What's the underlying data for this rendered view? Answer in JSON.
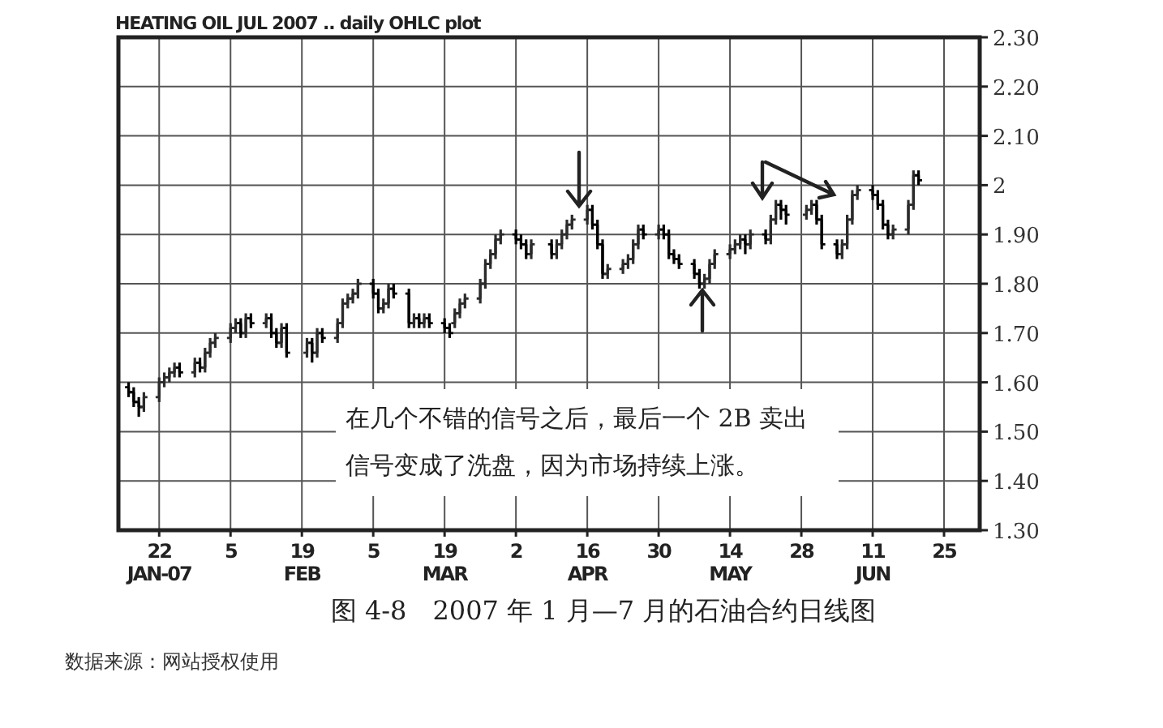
{
  "chart_data": {
    "type": "candlestick",
    "title": "HEATING OIL JUL 2007 .. daily OHLC plot",
    "annotations": [
      "在几个不错的信号之后，最后一个 2B 卖出信号变成了洗盘，因为市场持续上涨。",
      "图 4-8　2007 年 1 月—7 月的石油合约日线图",
      "数据来源：网站授权使用"
    ],
    "x": [
      "2007-01-16",
      "2007-01-17",
      "2007-01-18",
      "2007-01-19",
      "2007-01-22",
      "2007-01-23",
      "2007-01-24",
      "2007-01-25",
      "2007-01-26",
      "2007-01-29",
      "2007-01-30",
      "2007-01-31",
      "2007-02-01",
      "2007-02-02",
      "2007-02-05",
      "2007-02-06",
      "2007-02-07",
      "2007-02-08",
      "2007-02-09",
      "2007-02-12",
      "2007-02-13",
      "2007-02-14",
      "2007-02-15",
      "2007-02-16",
      "2007-02-20",
      "2007-02-21",
      "2007-02-22",
      "2007-02-23",
      "2007-02-26",
      "2007-02-27",
      "2007-02-28",
      "2007-03-01",
      "2007-03-02",
      "2007-03-05",
      "2007-03-06",
      "2007-03-07",
      "2007-03-08",
      "2007-03-09",
      "2007-03-12",
      "2007-03-13",
      "2007-03-14",
      "2007-03-15",
      "2007-03-16",
      "2007-03-19",
      "2007-03-20",
      "2007-03-21",
      "2007-03-22",
      "2007-03-23",
      "2007-03-26",
      "2007-03-27",
      "2007-03-28",
      "2007-03-29",
      "2007-03-30",
      "2007-04-02",
      "2007-04-03",
      "2007-04-04",
      "2007-04-05",
      "2007-04-09",
      "2007-04-10",
      "2007-04-11",
      "2007-04-12",
      "2007-04-13",
      "2007-04-16",
      "2007-04-17",
      "2007-04-18",
      "2007-04-19",
      "2007-04-20",
      "2007-04-23",
      "2007-04-24",
      "2007-04-25",
      "2007-04-26",
      "2007-04-27",
      "2007-04-30",
      "2007-05-01",
      "2007-05-02",
      "2007-05-03",
      "2007-05-04",
      "2007-05-07",
      "2007-05-08",
      "2007-05-09",
      "2007-05-10",
      "2007-05-11",
      "2007-05-14",
      "2007-05-15",
      "2007-05-16",
      "2007-05-17",
      "2007-05-18",
      "2007-05-21",
      "2007-05-22",
      "2007-05-23",
      "2007-05-24",
      "2007-05-25",
      "2007-05-29",
      "2007-05-30",
      "2007-05-31",
      "2007-06-01",
      "2007-06-04",
      "2007-06-05",
      "2007-06-06",
      "2007-06-07",
      "2007-06-08",
      "2007-06-11",
      "2007-06-12",
      "2007-06-13",
      "2007-06-14",
      "2007-06-15",
      "2007-06-18",
      "2007-06-19",
      "2007-06-20"
    ],
    "ohlc": [
      [
        1.59,
        1.6,
        1.57,
        1.58
      ],
      [
        1.58,
        1.59,
        1.55,
        1.56
      ],
      [
        1.56,
        1.57,
        1.53,
        1.55
      ],
      [
        1.55,
        1.58,
        1.54,
        1.57
      ],
      [
        1.57,
        1.61,
        1.56,
        1.6
      ],
      [
        1.6,
        1.62,
        1.59,
        1.61
      ],
      [
        1.61,
        1.63,
        1.6,
        1.62
      ],
      [
        1.62,
        1.64,
        1.61,
        1.63
      ],
      [
        1.63,
        1.64,
        1.61,
        1.62
      ],
      [
        1.62,
        1.65,
        1.61,
        1.64
      ],
      [
        1.64,
        1.65,
        1.62,
        1.63
      ],
      [
        1.63,
        1.67,
        1.62,
        1.66
      ],
      [
        1.66,
        1.69,
        1.65,
        1.68
      ],
      [
        1.68,
        1.7,
        1.67,
        1.69
      ],
      [
        1.69,
        1.72,
        1.68,
        1.71
      ],
      [
        1.71,
        1.73,
        1.7,
        1.72
      ],
      [
        1.72,
        1.73,
        1.69,
        1.7
      ],
      [
        1.7,
        1.74,
        1.69,
        1.73
      ],
      [
        1.73,
        1.74,
        1.71,
        1.72
      ],
      [
        1.72,
        1.74,
        1.71,
        1.73
      ],
      [
        1.73,
        1.74,
        1.69,
        1.7
      ],
      [
        1.7,
        1.71,
        1.67,
        1.68
      ],
      [
        1.68,
        1.72,
        1.67,
        1.71
      ],
      [
        1.71,
        1.72,
        1.65,
        1.66
      ],
      [
        1.66,
        1.69,
        1.65,
        1.68
      ],
      [
        1.68,
        1.69,
        1.64,
        1.66
      ],
      [
        1.66,
        1.71,
        1.65,
        1.7
      ],
      [
        1.7,
        1.71,
        1.68,
        1.69
      ],
      [
        1.69,
        1.73,
        1.68,
        1.72
      ],
      [
        1.72,
        1.77,
        1.71,
        1.76
      ],
      [
        1.76,
        1.78,
        1.75,
        1.77
      ],
      [
        1.77,
        1.79,
        1.76,
        1.78
      ],
      [
        1.78,
        1.81,
        1.77,
        1.8
      ],
      [
        1.8,
        1.81,
        1.77,
        1.78
      ],
      [
        1.78,
        1.79,
        1.74,
        1.75
      ],
      [
        1.75,
        1.77,
        1.74,
        1.76
      ],
      [
        1.76,
        1.8,
        1.75,
        1.79
      ],
      [
        1.79,
        1.8,
        1.77,
        1.78
      ],
      [
        1.78,
        1.79,
        1.71,
        1.72
      ],
      [
        1.72,
        1.74,
        1.71,
        1.73
      ],
      [
        1.73,
        1.74,
        1.71,
        1.72
      ],
      [
        1.72,
        1.74,
        1.71,
        1.73
      ],
      [
        1.73,
        1.74,
        1.71,
        1.72
      ],
      [
        1.72,
        1.73,
        1.7,
        1.71
      ],
      [
        1.71,
        1.72,
        1.69,
        1.7
      ],
      [
        1.72,
        1.75,
        1.71,
        1.74
      ],
      [
        1.74,
        1.77,
        1.73,
        1.76
      ],
      [
        1.76,
        1.78,
        1.75,
        1.77
      ],
      [
        1.77,
        1.81,
        1.76,
        1.8
      ],
      [
        1.8,
        1.85,
        1.79,
        1.84
      ],
      [
        1.84,
        1.87,
        1.83,
        1.86
      ],
      [
        1.86,
        1.9,
        1.85,
        1.89
      ],
      [
        1.89,
        1.91,
        1.88,
        1.9
      ],
      [
        1.9,
        1.91,
        1.88,
        1.89
      ],
      [
        1.89,
        1.9,
        1.87,
        1.88
      ],
      [
        1.88,
        1.89,
        1.85,
        1.86
      ],
      [
        1.86,
        1.89,
        1.85,
        1.88
      ],
      [
        1.88,
        1.89,
        1.85,
        1.86
      ],
      [
        1.86,
        1.89,
        1.85,
        1.88
      ],
      [
        1.88,
        1.91,
        1.87,
        1.9
      ],
      [
        1.9,
        1.93,
        1.89,
        1.92
      ],
      [
        1.92,
        1.94,
        1.91,
        1.93
      ],
      [
        1.93,
        1.96,
        1.92,
        1.95
      ],
      [
        1.95,
        1.96,
        1.91,
        1.92
      ],
      [
        1.92,
        1.93,
        1.87,
        1.88
      ],
      [
        1.88,
        1.89,
        1.81,
        1.82
      ],
      [
        1.82,
        1.84,
        1.81,
        1.83
      ],
      [
        1.83,
        1.85,
        1.82,
        1.84
      ],
      [
        1.84,
        1.86,
        1.83,
        1.85
      ],
      [
        1.85,
        1.89,
        1.84,
        1.88
      ],
      [
        1.88,
        1.92,
        1.87,
        1.91
      ],
      [
        1.91,
        1.92,
        1.89,
        1.9
      ],
      [
        1.9,
        1.92,
        1.89,
        1.91
      ],
      [
        1.91,
        1.92,
        1.89,
        1.9
      ],
      [
        1.9,
        1.91,
        1.85,
        1.86
      ],
      [
        1.86,
        1.87,
        1.84,
        1.85
      ],
      [
        1.85,
        1.86,
        1.83,
        1.84
      ],
      [
        1.84,
        1.85,
        1.81,
        1.82
      ],
      [
        1.82,
        1.83,
        1.79,
        1.8
      ],
      [
        1.8,
        1.82,
        1.79,
        1.81
      ],
      [
        1.81,
        1.85,
        1.8,
        1.84
      ],
      [
        1.84,
        1.87,
        1.83,
        1.86
      ],
      [
        1.86,
        1.88,
        1.85,
        1.87
      ],
      [
        1.87,
        1.89,
        1.86,
        1.88
      ],
      [
        1.88,
        1.9,
        1.87,
        1.89
      ],
      [
        1.89,
        1.9,
        1.86,
        1.88
      ],
      [
        1.88,
        1.91,
        1.87,
        1.9
      ],
      [
        1.9,
        1.91,
        1.88,
        1.89
      ],
      [
        1.89,
        1.94,
        1.88,
        1.93
      ],
      [
        1.93,
        1.97,
        1.92,
        1.96
      ],
      [
        1.96,
        1.97,
        1.93,
        1.95
      ],
      [
        1.95,
        1.96,
        1.92,
        1.94
      ],
      [
        1.94,
        1.96,
        1.93,
        1.95
      ],
      [
        1.95,
        1.97,
        1.94,
        1.96
      ],
      [
        1.96,
        1.97,
        1.92,
        1.93
      ],
      [
        1.93,
        1.94,
        1.87,
        1.88
      ],
      [
        1.88,
        1.89,
        1.85,
        1.86
      ],
      [
        1.86,
        1.89,
        1.85,
        1.88
      ],
      [
        1.88,
        1.94,
        1.87,
        1.93
      ],
      [
        1.93,
        1.99,
        1.92,
        1.98
      ],
      [
        1.98,
        2.0,
        1.97,
        1.99
      ],
      [
        1.99,
        2.0,
        1.97,
        1.98
      ],
      [
        1.98,
        1.99,
        1.95,
        1.96
      ],
      [
        1.96,
        1.97,
        1.91,
        1.92
      ],
      [
        1.92,
        1.93,
        1.89,
        1.9
      ],
      [
        1.9,
        1.92,
        1.89,
        1.91
      ],
      [
        1.91,
        1.97,
        1.9,
        1.96
      ],
      [
        1.96,
        2.03,
        1.95,
        2.02
      ],
      [
        2.02,
        2.03,
        2.0,
        2.01
      ]
    ],
    "xlim": [
      "2007-01-14",
      "2007-07-02"
    ],
    "xticks": [
      {
        "value": "2007-01-22",
        "label": "22\nJAN-07"
      },
      {
        "value": "2007-02-05",
        "label": "5"
      },
      {
        "value": "2007-02-19",
        "label": "19\nFEB"
      },
      {
        "value": "2007-03-05",
        "label": "5"
      },
      {
        "value": "2007-03-19",
        "label": "19\nMAR"
      },
      {
        "value": "2007-04-02",
        "label": "2"
      },
      {
        "value": "2007-04-16",
        "label": "16\nAPR"
      },
      {
        "value": "2007-04-30",
        "label": "30"
      },
      {
        "value": "2007-05-14",
        "label": "14\nMAY"
      },
      {
        "value": "2007-05-28",
        "label": "28"
      },
      {
        "value": "2007-06-11",
        "label": "11\nJUN"
      },
      {
        "value": "2007-06-25",
        "label": "25"
      }
    ],
    "ylim": [
      1.3,
      2.3
    ],
    "yticks": [
      {
        "value": 2.3,
        "label": "2.30"
      },
      {
        "value": 2.2,
        "label": "2.20"
      },
      {
        "value": 2.1,
        "label": "2.10"
      },
      2,
      {
        "value": 1.9,
        "label": "1.90"
      },
      {
        "value": 1.8,
        "label": "1.80"
      },
      {
        "value": 1.7,
        "label": "1.70"
      },
      {
        "value": 1.6,
        "label": "1.60"
      },
      {
        "value": 1.5,
        "label": "1.50"
      },
      {
        "value": 1.4,
        "label": "1.40"
      },
      {
        "value": 1.3,
        "label": "1.30"
      }
    ],
    "grid": true
  }
}
